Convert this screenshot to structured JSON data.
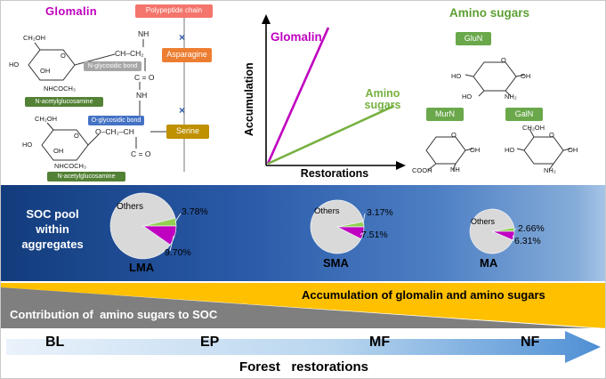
{
  "colors": {
    "magenta": "#c000c0",
    "green_line": "#76b041",
    "pie_green": "#92d050",
    "pie_gray": "#d9d9d9",
    "yellow_wedge": "#ffc000",
    "gray_wedge": "#7f7f7f",
    "banner_blue_left": "#123c7c",
    "banner_blue_right": "#a8c6e8",
    "arrow_blue": "#4e8fd4"
  },
  "glomalin_panel": {
    "title": "Glomalin",
    "boxes": {
      "polypeptide": "Polypeptide chain",
      "asparagine": "Asparagine",
      "serine": "Serine",
      "n_glycosidic": "N-glycosidic bond",
      "o_glycosidic": "O-glycosidic bond",
      "nag_top": "N-acetylglucosamine",
      "nag_bottom": "N-acetylglucosamine"
    },
    "ring_top_labels": [
      "CH₂OH",
      "O",
      "HO",
      "OH",
      "NHCOCH₃"
    ],
    "ring_bottom_labels": [
      "CH₂OH",
      "O",
      "HO",
      "OH",
      "NHCOCH₃"
    ],
    "chain_labels": [
      "NH",
      "CH–CH₂",
      "C = O",
      "NH",
      "O–CH₂–CH",
      "C = O"
    ],
    "repeat_marks": [
      "×",
      "×"
    ]
  },
  "line_chart": {
    "ylabel": "Accumulation",
    "xlabel": "Restorations",
    "series": [
      {
        "label": "Glomalin",
        "color": "#c000c0"
      },
      {
        "label": "Amino sugars",
        "color": "#76b041"
      }
    ]
  },
  "amino_panel": {
    "title": "Amino sugars",
    "sugars": [
      {
        "name": "GluN",
        "labels": [
          "O",
          "HO",
          "OH",
          "NH₂",
          "HO"
        ]
      },
      {
        "name": "MurN",
        "labels": [
          "O",
          "OH",
          "NH",
          "COOH"
        ]
      },
      {
        "name": "GalN",
        "labels": [
          "CH₂OH",
          "O",
          "OH",
          "HO",
          "NH₂"
        ]
      }
    ]
  },
  "soc_banner": {
    "label": "SOC pool within aggregates",
    "pies": [
      {
        "name": "LMA",
        "others_label": "Others",
        "green_value": 3.78,
        "green_label": "3.78%",
        "magenta_value": 9.7,
        "magenta_label": "9.70%"
      },
      {
        "name": "SMA",
        "others_label": "Others",
        "green_value": 3.17,
        "green_label": "3.17%",
        "magenta_value": 7.51,
        "magenta_label": "7.51%"
      },
      {
        "name": "MA",
        "others_label": "Others",
        "green_value": 2.66,
        "green_label": "2.66%",
        "magenta_value": 6.31,
        "magenta_label": "6.31%"
      }
    ]
  },
  "wedges": {
    "yellow_label": "Accumulation of glomalin and amino sugars",
    "gray_label": "Contribution of  amino sugars to SOC"
  },
  "stage_arrow": {
    "stages": [
      "BL",
      "EP",
      "MF",
      "NF"
    ],
    "caption": "Forest   restorations"
  },
  "chart_data": [
    {
      "type": "line",
      "title": "Accumulation across restorations (conceptual)",
      "xlabel": "Restorations",
      "ylabel": "Accumulation",
      "series": [
        {
          "name": "Glomalin",
          "trend": "steep linear increase"
        },
        {
          "name": "Amino sugars",
          "trend": "gentle linear increase"
        }
      ],
      "grid": false,
      "legend_position": "inline"
    },
    {
      "type": "pie",
      "title": "LMA",
      "segments": [
        {
          "label": "Others",
          "value": 86.52
        },
        {
          "label": "9.70%",
          "value": 9.7
        },
        {
          "label": "3.78%",
          "value": 3.78
        }
      ]
    },
    {
      "type": "pie",
      "title": "SMA",
      "segments": [
        {
          "label": "Others",
          "value": 89.32
        },
        {
          "label": "7.51%",
          "value": 7.51
        },
        {
          "label": "3.17%",
          "value": 3.17
        }
      ]
    },
    {
      "type": "pie",
      "title": "MA",
      "segments": [
        {
          "label": "Others",
          "value": 91.03
        },
        {
          "label": "6.31%",
          "value": 6.31
        },
        {
          "label": "2.66%",
          "value": 2.66
        }
      ]
    }
  ]
}
